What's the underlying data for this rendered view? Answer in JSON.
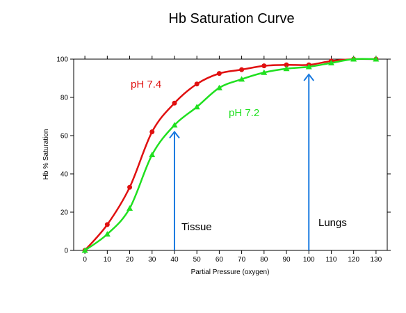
{
  "chart_data": {
    "type": "line",
    "title": "Hb Saturation Curve",
    "xlabel": "Partial Pressure (oxygen)",
    "ylabel": "Hb % Saturation",
    "xlim": [
      -5,
      135
    ],
    "ylim": [
      0,
      100
    ],
    "x_ticks": [
      0,
      10,
      20,
      30,
      40,
      50,
      60,
      70,
      80,
      90,
      100,
      110,
      120,
      130
    ],
    "y_ticks": [
      0,
      20,
      40,
      60,
      80,
      100
    ],
    "grid": false,
    "series": [
      {
        "name": "pH 7.4",
        "color": "#e01010",
        "marker": "circle",
        "x": [
          0,
          10,
          20,
          30,
          40,
          50,
          60,
          70,
          80,
          90,
          100,
          110,
          120,
          130
        ],
        "y": [
          0,
          13.5,
          33,
          62,
          77,
          87,
          92.5,
          94.5,
          96.5,
          97,
          97,
          99,
          100,
          100
        ]
      },
      {
        "name": "pH 7.2",
        "color": "#20e020",
        "marker": "triangle",
        "x": [
          0,
          10,
          20,
          30,
          40,
          50,
          60,
          70,
          80,
          90,
          100,
          110,
          120,
          130
        ],
        "y": [
          0,
          8.5,
          22,
          50,
          65.5,
          75,
          85,
          89.5,
          93,
          95,
          96,
          98,
          100,
          100
        ]
      }
    ],
    "annotations": [
      {
        "text": "Tissue",
        "arrow_x": 40,
        "arrow_y_from": 0,
        "arrow_y_to": 62,
        "color": "#1a7ae0"
      },
      {
        "text": "Lungs",
        "arrow_x": 100,
        "arrow_y_from": 0,
        "arrow_y_to": 92,
        "color": "#1a7ae0"
      }
    ]
  }
}
